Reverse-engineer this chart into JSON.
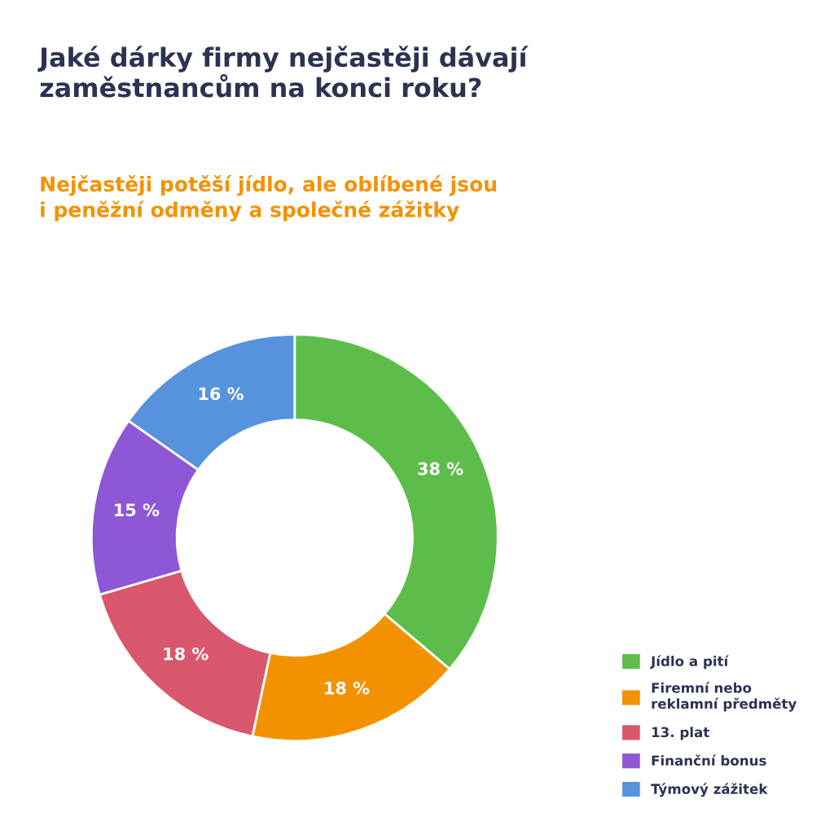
{
  "chart_data": {
    "type": "donut",
    "title": "Jaké dárky firmy nejčastěji dávají\nzaměstnancům na konci roku?",
    "subtitle": "Nejčastěji potěší jídlo, ale oblíbené jsou\ni peněžní odměny a společné zážitky",
    "categories": [
      "Jídlo a pití",
      "Firemní nebo\nreklamní předměty",
      "13. plat",
      "Finanční bonus",
      "Týmový zážitek"
    ],
    "values": [
      38,
      18,
      18,
      15,
      16
    ],
    "colors": [
      "#5dbd4b",
      "#f39200",
      "#d9576c",
      "#8e57d6",
      "#5793dc"
    ],
    "value_labels": [
      "38 %",
      "18 %",
      "18 %",
      "15 %",
      "16 %"
    ],
    "legend": "bottom right"
  }
}
